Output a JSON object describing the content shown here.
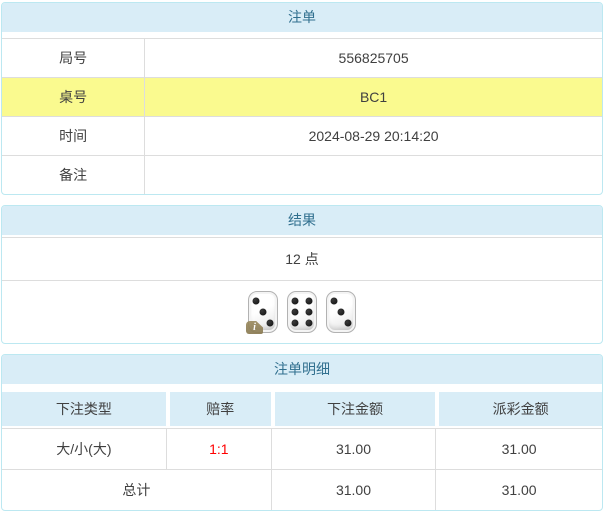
{
  "colors": {
    "panel_border": "#bce8f1",
    "heading_bg": "#d9edf7",
    "heading_text": "#31708f",
    "grid_line": "#dddddd",
    "highlight": "#fafa8f",
    "red": "#ff0000",
    "badge": "#8a7a52",
    "text": "#404040",
    "pip": "#1c1c1c"
  },
  "panels": {
    "order": {
      "title": "注单",
      "rows": [
        {
          "label": "局号",
          "value": "556825705",
          "highlight": false
        },
        {
          "label": "桌号",
          "value": "BC1",
          "highlight": true
        },
        {
          "label": "时间",
          "value": "2024-08-29 20:14:20",
          "highlight": false
        },
        {
          "label": "备注",
          "value": "",
          "highlight": false
        }
      ]
    },
    "result": {
      "title": "结果",
      "points": "12 点",
      "dice": [
        3,
        6,
        3
      ],
      "info_badge": "i"
    },
    "detail": {
      "title": "注单明细",
      "columns": [
        "下注类型",
        "赔率",
        "下注金额",
        "派彩金额"
      ],
      "rows": [
        {
          "type": "大/小(大)",
          "odds": "1:1",
          "bet": "31.00",
          "payout": "31.00"
        }
      ],
      "total": {
        "label": "总计",
        "bet": "31.00",
        "payout": "31.00"
      }
    }
  }
}
